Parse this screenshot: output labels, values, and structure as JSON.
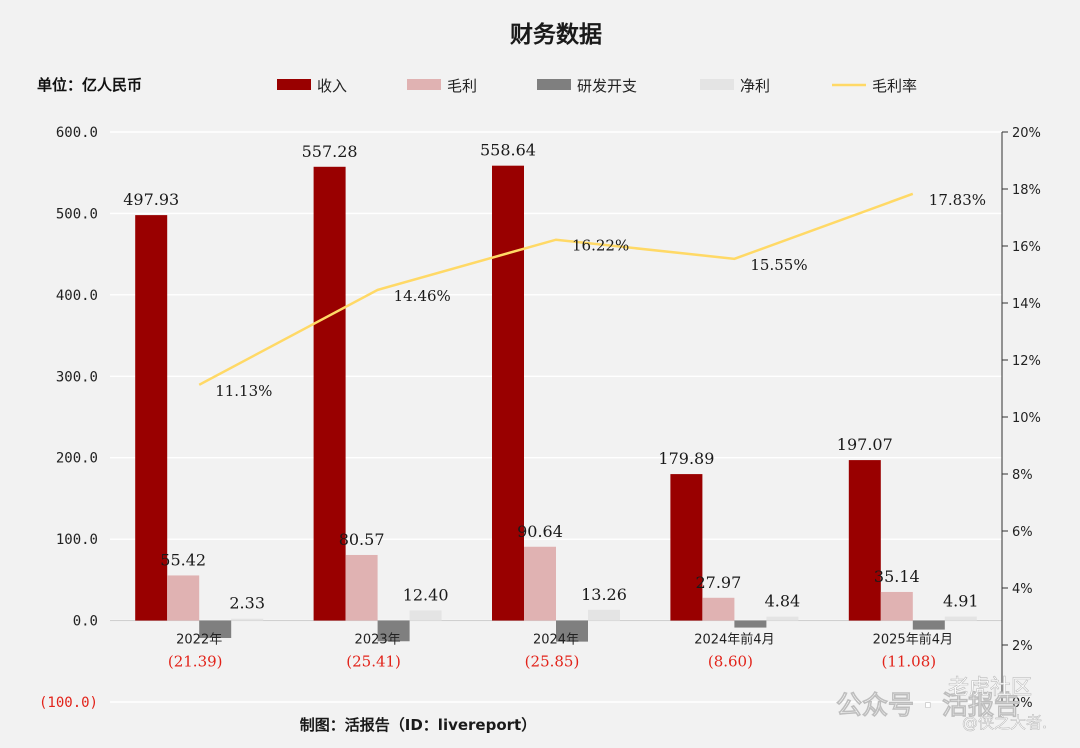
{
  "title": "财务数据",
  "unit_label": "单位：亿人民币",
  "footer": "制图：活报告（ID：livereport）",
  "watermark": {
    "line1": "公众号 · 活报告",
    "line2": "老虎社区",
    "line3": "@侠之大者."
  },
  "colors": {
    "revenue": "#990000",
    "gross_profit": "#e0b2b2",
    "rnd": "#7f7f7f",
    "net_profit": "#e4e4e4",
    "margin": "#ffd966",
    "negative_text": "#e2231a"
  },
  "chart_data": {
    "type": "bar",
    "categories": [
      "2022年",
      "2023年",
      "2024年",
      "2024年前4月",
      "2025年前4月"
    ],
    "series": [
      {
        "name": "收入",
        "values": [
          497.93,
          557.28,
          558.64,
          179.89,
          197.07
        ],
        "labels": [
          "497.93",
          "557.28",
          "558.64",
          "179.89",
          "197.07"
        ]
      },
      {
        "name": "毛利",
        "values": [
          55.42,
          80.57,
          90.64,
          27.97,
          35.14
        ],
        "labels": [
          "55.42",
          "80.57",
          "90.64",
          "27.97",
          "35.14"
        ]
      },
      {
        "name": "研发开支",
        "values": [
          -21.39,
          -25.41,
          -25.85,
          -8.6,
          -11.08
        ],
        "labels": [
          "(21.39)",
          "(25.41)",
          "(25.85)",
          "(8.60)",
          "(11.08)"
        ]
      },
      {
        "name": "净利",
        "values": [
          2.33,
          12.4,
          13.26,
          4.84,
          4.91
        ],
        "labels": [
          "2.33",
          "12.40",
          "13.26",
          "4.84",
          "4.91"
        ]
      }
    ],
    "line": {
      "name": "毛利率",
      "values": [
        11.13,
        14.46,
        16.22,
        15.55,
        17.83
      ],
      "labels": [
        "11.13%",
        "14.46%",
        "16.22%",
        "15.55%",
        "17.83%"
      ],
      "axis": "right"
    },
    "y_left": {
      "ylim": [
        -100,
        600
      ],
      "ticks": [
        600,
        500,
        400,
        300,
        200,
        100,
        0,
        -100
      ],
      "tick_labels": [
        "600.0",
        "500.0",
        "400.0",
        "300.0",
        "200.0",
        "100.0",
        "0.0",
        "(100.0)"
      ]
    },
    "y_right": {
      "ylim": [
        0,
        20
      ],
      "ticks": [
        20,
        18,
        16,
        14,
        12,
        10,
        8,
        6,
        4,
        2,
        0
      ],
      "tick_labels": [
        "20%",
        "18%",
        "16%",
        "14%",
        "12%",
        "10%",
        "8%",
        "6%",
        "4%",
        "2%",
        "0%"
      ]
    },
    "legend_position": "top",
    "grid": "horizontal"
  }
}
